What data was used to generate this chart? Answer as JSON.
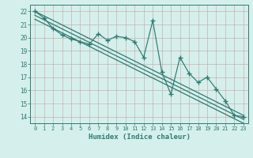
{
  "xlabel": "Humidex (Indice chaleur)",
  "ylabel": "",
  "xlim": [
    -0.5,
    23.5
  ],
  "ylim": [
    13.5,
    22.5
  ],
  "yticks": [
    14,
    15,
    16,
    17,
    18,
    19,
    20,
    21,
    22
  ],
  "xticks": [
    0,
    1,
    2,
    3,
    4,
    5,
    6,
    7,
    8,
    9,
    10,
    11,
    12,
    13,
    14,
    15,
    16,
    17,
    18,
    19,
    20,
    21,
    22,
    23
  ],
  "xtick_labels": [
    "0",
    "1",
    "2",
    "3",
    "4",
    "5",
    "6",
    "7",
    "8",
    "9",
    "10",
    "11",
    "12",
    "13",
    "14",
    "15",
    "16",
    "17",
    "18",
    "19",
    "20",
    "21",
    "22",
    "23"
  ],
  "bg_color": "#d5f0ec",
  "line_color": "#2d7a72",
  "grid_color": "#c8b0b0",
  "data_x": [
    0,
    1,
    2,
    3,
    4,
    5,
    6,
    7,
    8,
    9,
    10,
    11,
    12,
    13,
    14,
    15,
    16,
    17,
    18,
    19,
    20,
    21,
    22,
    23
  ],
  "data_y1": [
    22.0,
    21.5,
    20.7,
    20.2,
    19.9,
    19.7,
    19.5,
    20.3,
    19.8,
    20.1,
    20.0,
    19.7,
    18.5,
    21.3,
    17.4,
    15.7,
    18.5,
    17.3,
    16.6,
    17.0,
    16.1,
    15.2,
    14.1,
    14.0
  ],
  "regression_lines": [
    [
      22.0,
      14.1
    ],
    [
      21.7,
      13.8
    ],
    [
      21.4,
      13.5
    ]
  ]
}
